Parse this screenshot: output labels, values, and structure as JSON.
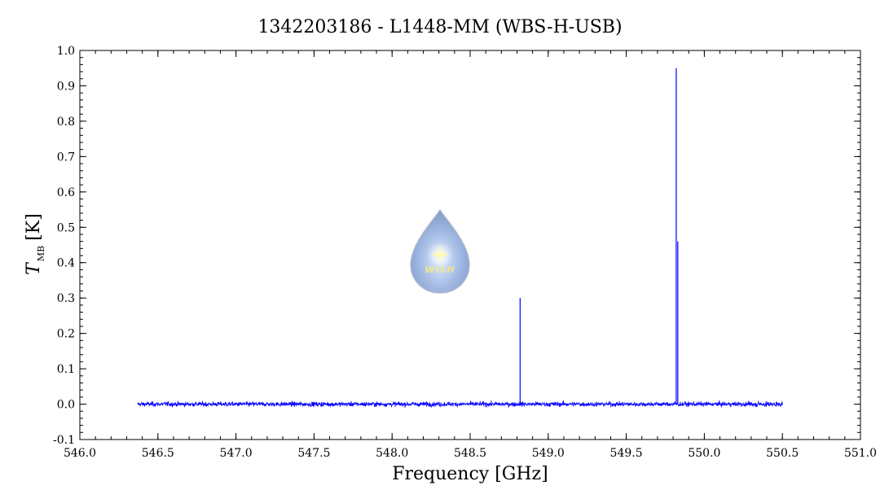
{
  "chart_data": {
    "type": "line",
    "title": "1342203186 - L1448-MM (WBS-H-USB)",
    "xlabel": "Frequency [GHz]",
    "ylabel_main": "T",
    "ylabel_sub": "MB",
    "ylabel_unit": "[K]",
    "xlim": [
      546.0,
      551.0
    ],
    "ylim": [
      -0.1,
      1.0
    ],
    "x_ticks": [
      "546.0",
      "546.5",
      "547.0",
      "547.5",
      "548.0",
      "548.5",
      "549.0",
      "549.5",
      "550.0",
      "550.5",
      "551.0"
    ],
    "y_ticks": [
      "-0.1",
      "0.0",
      "0.1",
      "0.2",
      "0.3",
      "0.4",
      "0.5",
      "0.6",
      "0.7",
      "0.8",
      "0.9",
      "1.0"
    ],
    "grid": false,
    "series": [
      {
        "color": "#0000ff",
        "x_range": [
          546.37,
          550.5
        ],
        "baseline": 0.0,
        "noise_rms": 0.006,
        "peaks": [
          {
            "x": 548.82,
            "y": 0.3
          },
          {
            "x": 549.82,
            "y": 0.95
          },
          {
            "x": 549.83,
            "y": 0.46
          }
        ]
      }
    ],
    "logo_text": "WISH"
  }
}
